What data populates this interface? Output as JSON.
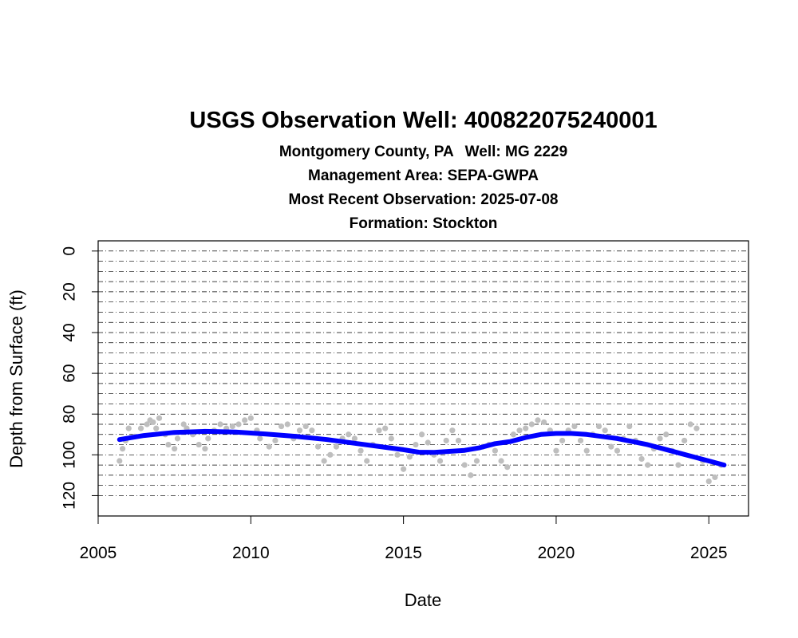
{
  "header": {
    "title": "USGS Observation Well:  400822075240001",
    "county": "Montgomery County, PA",
    "well": "Well: MG 2229",
    "management_area": "Management Area: SEPA-GWPA",
    "recent": "Most Recent Observation: 2025-07-08",
    "formation": "Formation: Stockton"
  },
  "chart_data": {
    "type": "scatter",
    "title": "USGS Observation Well:  400822075240001",
    "xlabel": "Date",
    "ylabel": "Depth from Surface (ft)",
    "xlim": [
      2005,
      2026.3
    ],
    "ylim": [
      130,
      -5
    ],
    "y_reversed": true,
    "x_ticks": [
      2005,
      2010,
      2015,
      2020,
      2025
    ],
    "y_ticks": [
      0,
      20,
      40,
      60,
      80,
      100,
      120
    ],
    "gridlines_y_every": 5,
    "grid": "dot-dash horizontal",
    "colors": {
      "points": "#bebebe",
      "trend": "#0000ff"
    },
    "series": [
      {
        "type": "scatter",
        "x": [
          2005.7,
          2005.8,
          2005.9,
          2006.0,
          2006.2,
          2006.4,
          2006.6,
          2006.7,
          2006.8,
          2006.9,
          2007.0,
          2007.2,
          2007.3,
          2007.5,
          2007.6,
          2007.8,
          2007.9,
          2008.1,
          2008.3,
          2008.5,
          2008.6,
          2008.8,
          2009.0,
          2009.2,
          2009.4,
          2009.6,
          2009.8,
          2010.0,
          2010.2,
          2010.3,
          2010.6,
          2010.8,
          2011.0,
          2011.2,
          2011.4,
          2011.6,
          2011.8,
          2012.0,
          2012.2,
          2012.4,
          2012.6,
          2012.8,
          2013.0,
          2013.2,
          2013.4,
          2013.6,
          2013.8,
          2014.0,
          2014.2,
          2014.4,
          2014.6,
          2014.8,
          2015.0,
          2015.2,
          2015.4,
          2015.6,
          2015.8,
          2016.0,
          2016.2,
          2016.4,
          2016.6,
          2016.8,
          2017.0,
          2017.2,
          2017.4,
          2017.6,
          2017.8,
          2018.0,
          2018.2,
          2018.4,
          2018.6,
          2018.8,
          2019.0,
          2019.2,
          2019.4,
          2019.6,
          2019.8,
          2020.0,
          2020.2,
          2020.4,
          2020.6,
          2020.8,
          2021.0,
          2021.2,
          2021.4,
          2021.6,
          2021.8,
          2022.0,
          2022.2,
          2022.4,
          2022.6,
          2022.8,
          2023.0,
          2023.2,
          2023.4,
          2023.6,
          2023.8,
          2024.0,
          2024.2,
          2024.4,
          2024.6,
          2024.8,
          2025.0,
          2025.2,
          2025.4
        ],
        "y": [
          103,
          97,
          93,
          87,
          91,
          87,
          85,
          83,
          84,
          87,
          82,
          90,
          95,
          97,
          92,
          85,
          87,
          90,
          95,
          97,
          92,
          88,
          85,
          87,
          86,
          85,
          83,
          82,
          88,
          92,
          96,
          93,
          86,
          85,
          92,
          88,
          86,
          88,
          96,
          103,
          100,
          96,
          92,
          90,
          92,
          98,
          103,
          95,
          88,
          87,
          92,
          100,
          107,
          101,
          95,
          90,
          94,
          100,
          103,
          93,
          88,
          93,
          105,
          110,
          103,
          96,
          95,
          98,
          103,
          106,
          90,
          88,
          87,
          85,
          83,
          84,
          88,
          98,
          93,
          88,
          86,
          93,
          98,
          90,
          86,
          88,
          96,
          98,
          92,
          86,
          93,
          102,
          105,
          97,
          92,
          90,
          98,
          105,
          93,
          85,
          87,
          103,
          113,
          111,
          105
        ]
      },
      {
        "type": "line",
        "x": [
          2005.7,
          2006.5,
          2007.5,
          2008.5,
          2009.5,
          2010.5,
          2011.5,
          2012.5,
          2013.5,
          2014.5,
          2015.0,
          2015.5,
          2016.0,
          2016.5,
          2017.0,
          2017.5,
          2018.0,
          2018.5,
          2019.0,
          2019.5,
          2020.0,
          2020.5,
          2021.0,
          2021.5,
          2022.0,
          2022.5,
          2023.0,
          2023.5,
          2024.0,
          2024.5,
          2025.0,
          2025.5
        ],
        "y": [
          92.5,
          90.5,
          89.0,
          88.5,
          88.8,
          89.8,
          91.0,
          92.5,
          94.5,
          96.5,
          97.5,
          98.7,
          98.8,
          98.3,
          97.8,
          96.5,
          94.5,
          93.5,
          91.5,
          90.0,
          89.5,
          89.5,
          90.0,
          91.0,
          92.0,
          93.5,
          95.0,
          97.0,
          99.0,
          101.0,
          103.0,
          105.0
        ]
      }
    ]
  }
}
